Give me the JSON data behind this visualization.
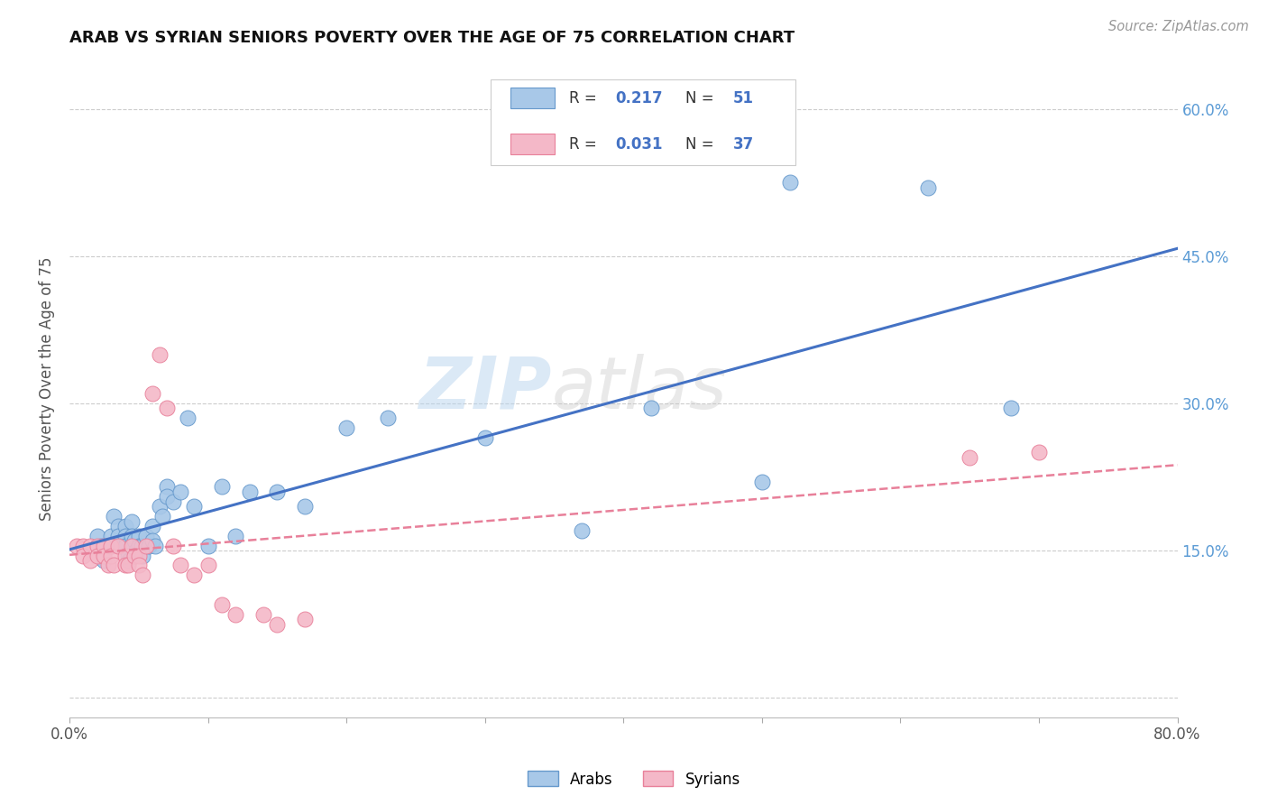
{
  "title": "ARAB VS SYRIAN SENIORS POVERTY OVER THE AGE OF 75 CORRELATION CHART",
  "source_text": "Source: ZipAtlas.com",
  "ylabel": "Seniors Poverty Over the Age of 75",
  "xlim": [
    0.0,
    0.8
  ],
  "ylim": [
    -0.02,
    0.65
  ],
  "ytick_positions": [
    0.0,
    0.15,
    0.3,
    0.45,
    0.6
  ],
  "ytick_labels_right": [
    "",
    "15.0%",
    "30.0%",
    "45.0%",
    "60.0%"
  ],
  "watermark_zip": "ZIP",
  "watermark_atlas": "atlas",
  "arab_R": 0.217,
  "arab_N": 51,
  "syrian_R": 0.031,
  "syrian_N": 37,
  "arab_color": "#a8c8e8",
  "arab_edge_color": "#6699cc",
  "syrian_color": "#f4b8c8",
  "syrian_edge_color": "#e8809a",
  "arab_line_color": "#4472c4",
  "syrian_line_color": "#e8809a",
  "background_color": "#ffffff",
  "grid_color": "#cccccc",
  "arab_x": [
    0.02,
    0.023,
    0.025,
    0.025,
    0.03,
    0.03,
    0.032,
    0.035,
    0.035,
    0.037,
    0.04,
    0.04,
    0.04,
    0.042,
    0.043,
    0.045,
    0.045,
    0.047,
    0.048,
    0.05,
    0.05,
    0.052,
    0.053,
    0.055,
    0.057,
    0.06,
    0.06,
    0.062,
    0.065,
    0.067,
    0.07,
    0.07,
    0.075,
    0.08,
    0.085,
    0.09,
    0.1,
    0.11,
    0.12,
    0.13,
    0.15,
    0.17,
    0.2,
    0.23,
    0.3,
    0.37,
    0.42,
    0.5,
    0.52,
    0.62,
    0.68
  ],
  "arab_y": [
    0.165,
    0.155,
    0.15,
    0.14,
    0.165,
    0.155,
    0.185,
    0.175,
    0.165,
    0.155,
    0.175,
    0.165,
    0.155,
    0.145,
    0.14,
    0.18,
    0.165,
    0.16,
    0.15,
    0.165,
    0.155,
    0.155,
    0.145,
    0.165,
    0.155,
    0.175,
    0.16,
    0.155,
    0.195,
    0.185,
    0.215,
    0.205,
    0.2,
    0.21,
    0.285,
    0.195,
    0.155,
    0.215,
    0.165,
    0.21,
    0.21,
    0.195,
    0.275,
    0.285,
    0.265,
    0.17,
    0.295,
    0.22,
    0.525,
    0.52,
    0.295
  ],
  "syrian_x": [
    0.005,
    0.01,
    0.01,
    0.015,
    0.015,
    0.02,
    0.02,
    0.025,
    0.025,
    0.028,
    0.03,
    0.03,
    0.032,
    0.035,
    0.04,
    0.04,
    0.042,
    0.045,
    0.047,
    0.05,
    0.05,
    0.053,
    0.055,
    0.06,
    0.065,
    0.07,
    0.075,
    0.08,
    0.09,
    0.1,
    0.11,
    0.12,
    0.14,
    0.15,
    0.17,
    0.65,
    0.7
  ],
  "syrian_y": [
    0.155,
    0.155,
    0.145,
    0.155,
    0.14,
    0.155,
    0.145,
    0.155,
    0.145,
    0.135,
    0.155,
    0.145,
    0.135,
    0.155,
    0.145,
    0.135,
    0.135,
    0.155,
    0.145,
    0.145,
    0.135,
    0.125,
    0.155,
    0.31,
    0.35,
    0.295,
    0.155,
    0.135,
    0.125,
    0.135,
    0.095,
    0.085,
    0.085,
    0.075,
    0.08,
    0.245,
    0.25
  ]
}
